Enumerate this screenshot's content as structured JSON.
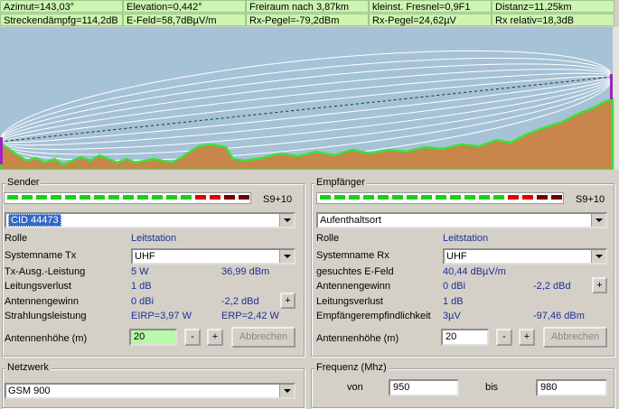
{
  "status": {
    "row1": [
      "Azimut=143,03°",
      "Elevation=0,442°",
      "Freiraum nach 3,87km",
      "kleinst. Fresnel=0,9F1",
      "Distanz=11,25km"
    ],
    "row2": [
      "Streckendämpfg=114,2dB",
      "E-Feld=58,7dBµV/m",
      "Rx-Pegel=-79,2dBm",
      "Rx-Pegel=24,62µV",
      "Rx relativ=18,3dB"
    ]
  },
  "sender": {
    "title": "Sender",
    "meter": "S9+10",
    "site": "CID 44473",
    "role_label": "Rolle",
    "role": "Leitstation",
    "system_label": "Systemname Tx",
    "system": "UHF",
    "power_label": "Tx-Ausg.-Leistung",
    "power_w": "5 W",
    "power_dbm": "36,99 dBm",
    "loss_label": "Leitungsverlust",
    "loss": "1 dB",
    "gain_label": "Antennengewinn",
    "gain_dbi": "0 dBi",
    "gain_dbd": "-2,2 dBd",
    "gain_plus": "+",
    "radiated_label": "Strahlungsleistung",
    "eirp": "EIRP=3,97 W",
    "erp": "ERP=2,42 W",
    "height_label": "Antennenhöhe (m)",
    "height": "20",
    "height_minus": "-",
    "height_plus": "+",
    "cancel": "Abbrechen"
  },
  "receiver": {
    "title": "Empfänger",
    "meter": "S9+10",
    "site": "Aufenthaltsort",
    "role_label": "Rolle",
    "role": "Leitstation",
    "system_label": "Systemname Rx",
    "system": "UHF",
    "field_label": "gesuchtes E-Feld",
    "field": "40,44 dBµV/m",
    "gain_label": "Antennengewinn",
    "gain_dbi": "0 dBi",
    "gain_dbd": "-2,2 dBd",
    "gain_plus": "+",
    "loss_label": "Leitungsverlust",
    "loss": "1 dB",
    "sens_label": "Empfängerempfindlichkeit",
    "sens_uv": "3µV",
    "sens_dbm": "-97,46 dBm",
    "height_label": "Antennenhöhe (m)",
    "height": "20",
    "height_minus": "-",
    "height_plus": "+",
    "cancel": "Abbrechen"
  },
  "network": {
    "title": "Netzwerk",
    "value": "GSM 900"
  },
  "frequency": {
    "title": "Frequenz (Mhz)",
    "from_label": "von",
    "from": "950",
    "to_label": "bis",
    "to": "980"
  }
}
